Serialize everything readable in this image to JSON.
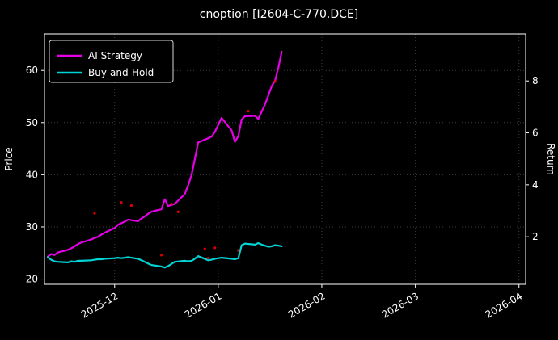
{
  "chart_data": {
    "type": "line",
    "title": "cnoption [I2604-C-770.DCE]",
    "xlabel": "",
    "ylabel_left": "Price",
    "ylabel_right": "Return",
    "grid": true,
    "legend_position": "upper-left",
    "background": "#000000",
    "axis_color": "#ffffff",
    "xlim": [
      "2025-11-10",
      "2026-04-03"
    ],
    "ylim": [
      19,
      67
    ],
    "y_ticks": [
      20,
      30,
      40,
      50,
      60
    ],
    "y2lim": [
      0.17,
      9.81
    ],
    "y2_ticks": [
      2,
      4,
      6,
      8
    ],
    "x_tick_dates": [
      "2025-12-01",
      "2026-01-01",
      "2026-02-01",
      "2026-03-01",
      "2026-04-01"
    ],
    "x_tick_labels": [
      "2025-12",
      "2026-01",
      "2026-02",
      "2026-03",
      "2026-04"
    ],
    "series": [
      {
        "name": "AI Strategy",
        "type": "line",
        "color": "#e600e6",
        "points": [
          [
            "2025-11-11",
            24.3
          ],
          [
            "2025-11-12",
            24.8
          ],
          [
            "2025-11-13",
            24.6
          ],
          [
            "2025-11-14",
            25.1
          ],
          [
            "2025-11-17",
            25.6
          ],
          [
            "2025-11-18",
            25.9
          ],
          [
            "2025-11-19",
            26.3
          ],
          [
            "2025-11-20",
            26.7
          ],
          [
            "2025-11-21",
            27.0
          ],
          [
            "2025-11-24",
            27.6
          ],
          [
            "2025-11-25",
            27.9
          ],
          [
            "2025-11-26",
            28.1
          ],
          [
            "2025-11-27",
            28.5
          ],
          [
            "2025-11-28",
            28.9
          ],
          [
            "2025-12-01",
            29.8
          ],
          [
            "2025-12-02",
            30.4
          ],
          [
            "2025-12-03",
            30.7
          ],
          [
            "2025-12-04",
            31.0
          ],
          [
            "2025-12-05",
            31.4
          ],
          [
            "2025-12-08",
            31.1
          ],
          [
            "2025-12-09",
            31.6
          ],
          [
            "2025-12-10",
            32.0
          ],
          [
            "2025-12-11",
            32.5
          ],
          [
            "2025-12-12",
            32.9
          ],
          [
            "2025-12-15",
            33.4
          ],
          [
            "2025-12-16",
            35.3
          ],
          [
            "2025-12-17",
            34.0
          ],
          [
            "2025-12-18",
            34.2
          ],
          [
            "2025-12-19",
            34.4
          ],
          [
            "2025-12-22",
            36.3
          ],
          [
            "2025-12-23",
            38.0
          ],
          [
            "2025-12-24",
            39.9
          ],
          [
            "2025-12-25",
            43.0
          ],
          [
            "2025-12-26",
            46.2
          ],
          [
            "2025-12-29",
            47.0
          ],
          [
            "2025-12-30",
            47.3
          ],
          [
            "2025-12-31",
            48.2
          ],
          [
            "2026-01-02",
            50.9
          ],
          [
            "2026-01-05",
            48.5
          ],
          [
            "2026-01-06",
            46.3
          ],
          [
            "2026-01-07",
            47.4
          ],
          [
            "2026-01-08",
            50.6
          ],
          [
            "2026-01-09",
            51.2
          ],
          [
            "2026-01-12",
            51.3
          ],
          [
            "2026-01-13",
            50.7
          ],
          [
            "2026-01-14",
            52.1
          ],
          [
            "2026-01-15",
            53.5
          ],
          [
            "2026-01-16",
            55.2
          ],
          [
            "2026-01-17",
            57.0
          ],
          [
            "2026-01-18",
            58.0
          ],
          [
            "2026-01-19",
            60.5
          ],
          [
            "2026-01-20",
            63.6
          ]
        ]
      },
      {
        "name": "Buy-and-Hold",
        "type": "line",
        "color": "#00d4d4",
        "points": [
          [
            "2025-11-11",
            24.2
          ],
          [
            "2025-11-12",
            23.7
          ],
          [
            "2025-11-13",
            23.4
          ],
          [
            "2025-11-14",
            23.3
          ],
          [
            "2025-11-17",
            23.2
          ],
          [
            "2025-11-18",
            23.4
          ],
          [
            "2025-11-19",
            23.3
          ],
          [
            "2025-11-20",
            23.5
          ],
          [
            "2025-11-21",
            23.5
          ],
          [
            "2025-11-24",
            23.6
          ],
          [
            "2025-11-25",
            23.7
          ],
          [
            "2025-11-26",
            23.8
          ],
          [
            "2025-11-27",
            23.8
          ],
          [
            "2025-11-28",
            23.9
          ],
          [
            "2025-12-01",
            24.0
          ],
          [
            "2025-12-02",
            24.1
          ],
          [
            "2025-12-03",
            24.0
          ],
          [
            "2025-12-04",
            24.1
          ],
          [
            "2025-12-05",
            24.2
          ],
          [
            "2025-12-08",
            23.9
          ],
          [
            "2025-12-09",
            23.6
          ],
          [
            "2025-12-10",
            23.3
          ],
          [
            "2025-12-11",
            23.0
          ],
          [
            "2025-12-12",
            22.7
          ],
          [
            "2025-12-15",
            22.4
          ],
          [
            "2025-12-16",
            22.2
          ],
          [
            "2025-12-17",
            22.5
          ],
          [
            "2025-12-18",
            22.9
          ],
          [
            "2025-12-19",
            23.3
          ],
          [
            "2025-12-22",
            23.5
          ],
          [
            "2025-12-23",
            23.4
          ],
          [
            "2025-12-24",
            23.5
          ],
          [
            "2025-12-25",
            23.9
          ],
          [
            "2025-12-26",
            24.4
          ],
          [
            "2025-12-29",
            23.6
          ],
          [
            "2025-12-30",
            23.7
          ],
          [
            "2025-12-31",
            23.9
          ],
          [
            "2026-01-02",
            24.1
          ],
          [
            "2026-01-05",
            23.9
          ],
          [
            "2026-01-06",
            23.8
          ],
          [
            "2026-01-07",
            24.0
          ],
          [
            "2026-01-08",
            26.5
          ],
          [
            "2026-01-09",
            26.8
          ],
          [
            "2026-01-12",
            26.6
          ],
          [
            "2026-01-13",
            26.9
          ],
          [
            "2026-01-14",
            26.6
          ],
          [
            "2026-01-15",
            26.4
          ],
          [
            "2026-01-16",
            26.2
          ],
          [
            "2026-01-17",
            26.3
          ],
          [
            "2026-01-18",
            26.5
          ],
          [
            "2026-01-19",
            26.4
          ],
          [
            "2026-01-20",
            26.3
          ]
        ]
      },
      {
        "name": "signal-dots",
        "type": "scatter",
        "color": "#ff0000",
        "points": [
          [
            "2025-11-25",
            32.6
          ],
          [
            "2025-12-03",
            34.7
          ],
          [
            "2025-12-06",
            34.1
          ],
          [
            "2025-12-15",
            24.6
          ],
          [
            "2025-12-18",
            34.4
          ],
          [
            "2025-12-20",
            32.9
          ],
          [
            "2025-12-28",
            25.8
          ],
          [
            "2025-12-29",
            24.0
          ],
          [
            "2025-12-31",
            26.0
          ],
          [
            "2026-01-07",
            25.5
          ],
          [
            "2026-01-10",
            52.2
          ],
          [
            "2026-01-18",
            57.9
          ]
        ]
      }
    ]
  },
  "legend": {
    "items": [
      {
        "label": "AI Strategy",
        "color": "#e600e6"
      },
      {
        "label": "Buy-and-Hold",
        "color": "#00d4d4"
      }
    ]
  }
}
